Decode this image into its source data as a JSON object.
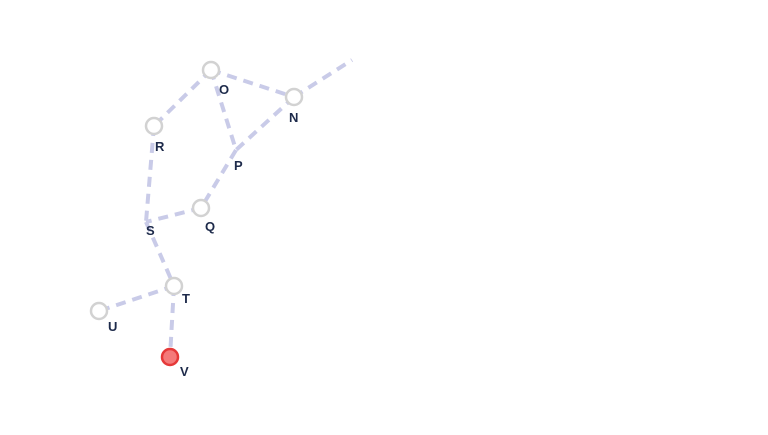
{
  "graph": {
    "nodes": [
      {
        "id": "O",
        "label": "O",
        "state": "normal"
      },
      {
        "id": "N",
        "label": "N",
        "state": "normal"
      },
      {
        "id": "R",
        "label": "R",
        "state": "normal"
      },
      {
        "id": "P",
        "label": "P",
        "state": "waypoint"
      },
      {
        "id": "Q",
        "label": "Q",
        "state": "normal"
      },
      {
        "id": "S",
        "label": "S",
        "state": "waypoint"
      },
      {
        "id": "T",
        "label": "T",
        "state": "normal"
      },
      {
        "id": "U",
        "label": "U",
        "state": "normal"
      },
      {
        "id": "V",
        "label": "V",
        "state": "active"
      }
    ],
    "edges": [
      [
        "N",
        "offscreen"
      ],
      [
        "O",
        "N"
      ],
      [
        "O",
        "R"
      ],
      [
        "O",
        "P"
      ],
      [
        "N",
        "P"
      ],
      [
        "P",
        "Q"
      ],
      [
        "Q",
        "S"
      ],
      [
        "R",
        "S"
      ],
      [
        "S",
        "T"
      ],
      [
        "T",
        "U"
      ],
      [
        "T",
        "V"
      ]
    ]
  },
  "colors": {
    "edge": "#c9cbe8",
    "node_stroke": "#d2d2d2",
    "active_fill": "#f47a7a",
    "active_stroke": "#e53939",
    "label": "#1d2a4a"
  }
}
